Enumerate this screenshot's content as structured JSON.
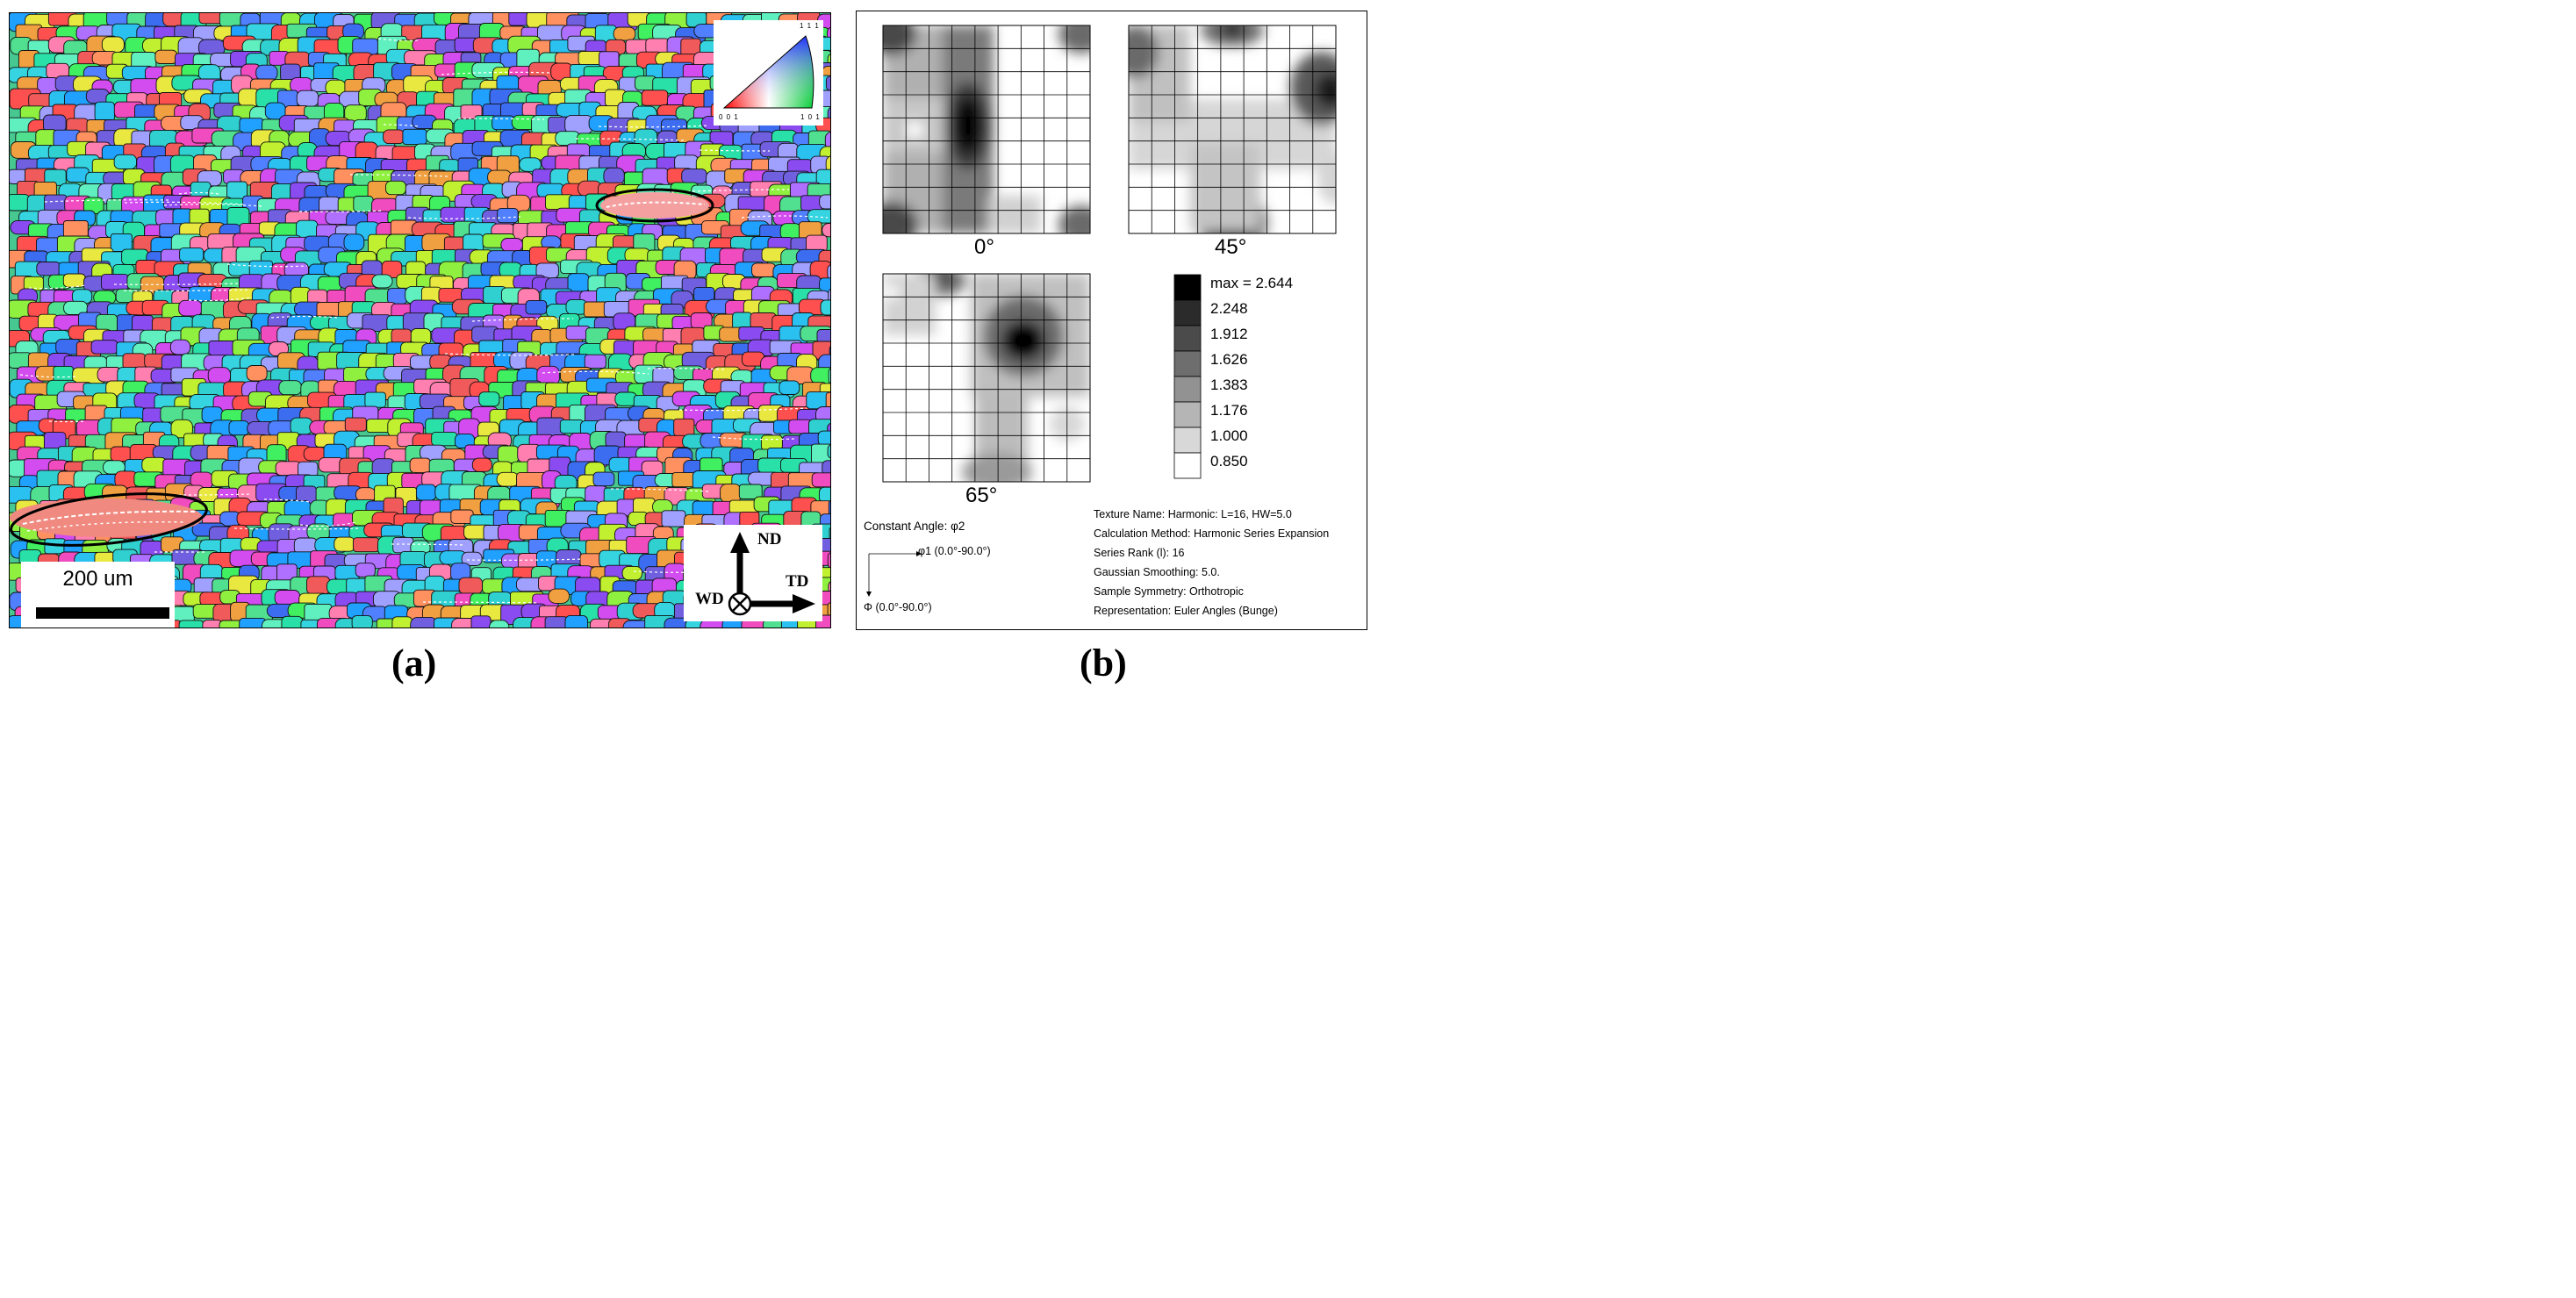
{
  "panel_a": {
    "label": "(a)",
    "scale_bar": "200 um",
    "axes": {
      "nd": "ND",
      "td": "TD",
      "wd": "WD"
    },
    "ipf_key": {
      "top": "1 1 1",
      "left": "0 0 1",
      "right": "1 0 1"
    }
  },
  "panel_b": {
    "label": "(b)",
    "sections": [
      "0°",
      "45°",
      "65°"
    ],
    "legend": {
      "max_label": "max = 2.644",
      "levels": [
        "2.248",
        "1.912",
        "1.626",
        "1.383",
        "1.176",
        "1.000",
        "0.850"
      ],
      "colors": [
        "#000000",
        "#2b2b2b",
        "#4b4b4b",
        "#6e6e6e",
        "#929292",
        "#b5b5b5",
        "#d8d8d8",
        "#ffffff"
      ]
    },
    "constant_angle": "Constant Angle: φ2",
    "phi1_axis": "φ1 (0.0°-90.0°)",
    "Phi_axis": "Φ (0.0°-90.0°)",
    "info": [
      "Texture Name: Harmonic: L=16, HW=5.0",
      "Calculation Method: Harmonic Series Expansion",
      "Series Rank (l): 16",
      "Gaussian Smoothing: 5.0.",
      "Sample Symmetry: Orthotropic",
      "Representation: Euler Angles (Bunge)"
    ]
  }
}
